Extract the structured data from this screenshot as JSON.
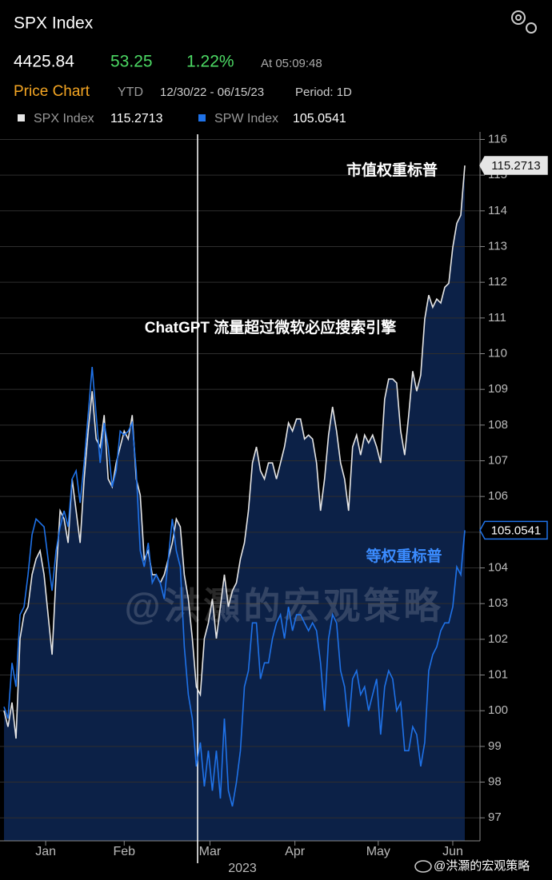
{
  "header": {
    "ticker": "SPX Index",
    "price": "4425.84",
    "change": "53.25",
    "change_pct": "1.22%",
    "time": "At 05:09:48",
    "tab": "Price Chart",
    "range": "YTD",
    "dates": "12/30/22 - 06/15/23",
    "period": "Period: 1D"
  },
  "chart_data": {
    "type": "line",
    "annotations": [
      "市值权重标普",
      "ChatGPT 流量超过微软必应搜索引擎",
      "等权重标普"
    ],
    "watermark": "@洪灝的宏观策略",
    "xlabel": "2023",
    "xlim": [
      0,
      115
    ],
    "xticks": [
      {
        "value": 10.4,
        "label": "Jan"
      },
      {
        "value": 30,
        "label": "Feb"
      },
      {
        "value": 51.4,
        "label": "Mar"
      },
      {
        "value": 72.6,
        "label": "Apr"
      },
      {
        "value": 93.4,
        "label": "May"
      },
      {
        "value": 112,
        "label": "Jun"
      }
    ],
    "ylim": [
      96.4,
      116.1
    ],
    "yticks": [
      97,
      98,
      99,
      100,
      101,
      102,
      103,
      104,
      105,
      106,
      107,
      108,
      109,
      110,
      111,
      112,
      113,
      114,
      115,
      116
    ],
    "grid": true,
    "series": [
      {
        "name": "SPX Index",
        "color": "#e6e6e6",
        "fill": "#0c2147",
        "values": [
          100.0,
          99.55,
          100.23,
          99.22,
          102.02,
          102.69,
          102.91,
          103.81,
          104.25,
          104.48,
          103.81,
          102.69,
          101.57,
          103.81,
          105.6,
          105.37,
          104.7,
          106.49,
          105.6,
          104.7,
          106.49,
          107.83,
          108.95,
          107.61,
          107.39,
          108.28,
          106.49,
          106.27,
          106.94,
          107.39,
          107.83,
          107.61,
          108.28,
          106.49,
          106.04,
          104.25,
          104.48,
          103.81,
          103.81,
          103.58,
          103.81,
          104.25,
          104.7,
          105.37,
          105.15,
          103.81,
          103.13,
          102.02,
          100.67,
          100.45,
          102.02,
          102.46,
          103.13,
          102.02,
          102.91,
          103.81,
          102.91,
          103.36,
          103.58,
          104.25,
          104.7,
          105.6,
          106.94,
          107.39,
          106.72,
          106.49,
          106.94,
          106.94,
          106.49,
          106.94,
          107.39,
          108.06,
          107.83,
          108.17,
          108.17,
          107.61,
          107.72,
          107.61,
          106.94,
          105.6,
          106.49,
          107.72,
          108.51,
          107.83,
          106.94,
          106.49,
          105.6,
          107.39,
          107.72,
          107.16,
          107.72,
          107.5,
          107.72,
          107.39,
          106.94,
          108.73,
          109.29,
          109.29,
          109.18,
          107.83,
          107.16,
          108.28,
          109.51,
          108.95,
          109.4,
          110.97,
          111.64,
          111.3,
          111.53,
          111.42,
          111.86,
          111.97,
          112.98,
          113.65,
          113.88,
          115.2713
        ]
      },
      {
        "name": "SPW Index",
        "color": "#1f72e8",
        "values": [
          100.11,
          99.78,
          101.34,
          100.67,
          102.69,
          102.91,
          103.81,
          104.93,
          105.37,
          105.26,
          105.15,
          104.25,
          103.36,
          104.48,
          105.15,
          105.6,
          105.15,
          106.49,
          106.72,
          105.82,
          106.94,
          108.28,
          109.63,
          108.28,
          106.94,
          108.06,
          107.39,
          106.27,
          106.72,
          107.83,
          107.72,
          107.83,
          108.06,
          106.72,
          104.48,
          104.03,
          104.7,
          103.58,
          103.81,
          103.58,
          103.13,
          104.25,
          105.37,
          104.48,
          104.03,
          101.79,
          100.45,
          99.78,
          98.44,
          99.11,
          97.88,
          98.88,
          97.76,
          98.88,
          97.54,
          99.78,
          97.76,
          97.32,
          97.99,
          98.88,
          100.67,
          101.12,
          102.46,
          102.46,
          100.89,
          101.34,
          101.34,
          102.02,
          102.46,
          102.69,
          102.02,
          102.91,
          102.24,
          102.69,
          102.69,
          102.46,
          102.24,
          102.46,
          102.24,
          101.34,
          100.0,
          102.02,
          102.69,
          102.46,
          101.12,
          100.67,
          99.55,
          100.89,
          101.12,
          100.45,
          100.67,
          100.0,
          100.45,
          100.89,
          99.33,
          100.67,
          101.12,
          100.89,
          100.0,
          100.23,
          98.88,
          98.88,
          99.55,
          99.33,
          98.44,
          99.11,
          101.12,
          101.57,
          101.79,
          102.24,
          102.46,
          102.46,
          102.91,
          104.03,
          103.81,
          105.0541
        ]
      }
    ]
  }
}
